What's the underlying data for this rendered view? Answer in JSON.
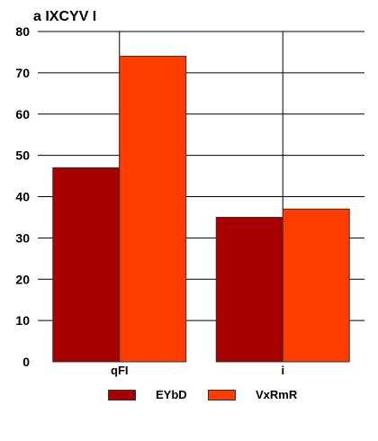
{
  "chart_data": {
    "type": "bar",
    "title": "a IXCYV I",
    "categories": [
      "qFI",
      "i"
    ],
    "series": [
      {
        "name": "EYbD",
        "values": [
          47,
          35
        ],
        "color": "#a80000"
      },
      {
        "name": "VxRmR",
        "values": [
          74,
          37
        ],
        "color": "#ff3d00"
      }
    ],
    "ylim": [
      0,
      80
    ],
    "yticks": [
      0,
      10,
      20,
      30,
      40,
      50,
      60,
      70,
      80
    ],
    "xlabel": "",
    "ylabel": "",
    "grid": true,
    "legend_position": "bottom"
  }
}
